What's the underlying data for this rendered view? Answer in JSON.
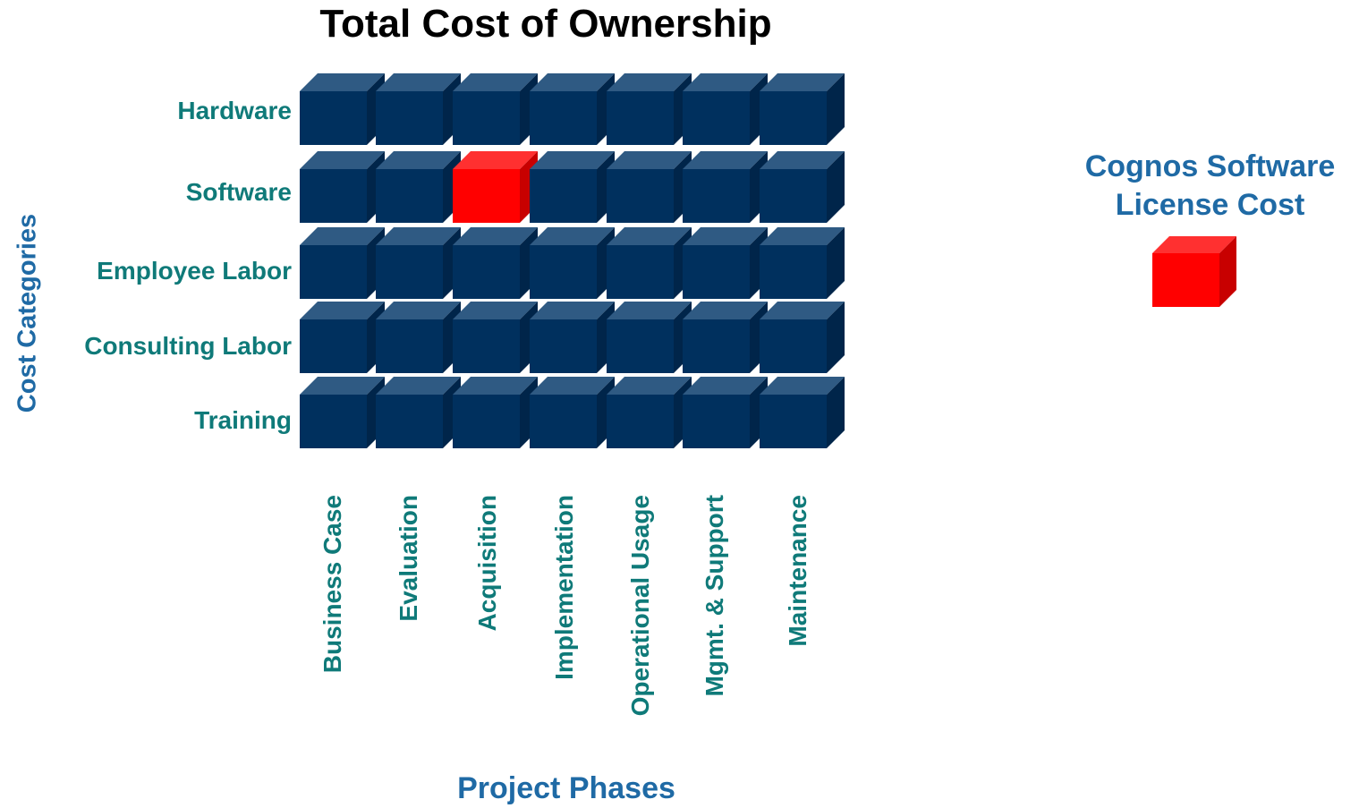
{
  "title": "Total Cost of Ownership",
  "y_axis_title": "Cost Categories",
  "x_axis_title": "Project Phases",
  "rows": [
    "Hardware",
    "Software",
    "Employee Labor",
    "Consulting Labor",
    "Training"
  ],
  "columns": [
    "Business Case",
    "Evaluation",
    "Acquisition",
    "Implementation",
    "Operational Usage",
    "Mgmt. & Support",
    "Maintenance"
  ],
  "highlight": {
    "row": 1,
    "column": 2
  },
  "legend": {
    "label_line1": "Cognos Software",
    "label_line2": "License Cost"
  },
  "colors": {
    "cube_front": "#00305e",
    "cube_top": "#2f5a83",
    "cube_side": "#00254a",
    "highlight_front": "#ff0000",
    "highlight_top": "#ff3030",
    "highlight_side": "#c80000"
  }
}
